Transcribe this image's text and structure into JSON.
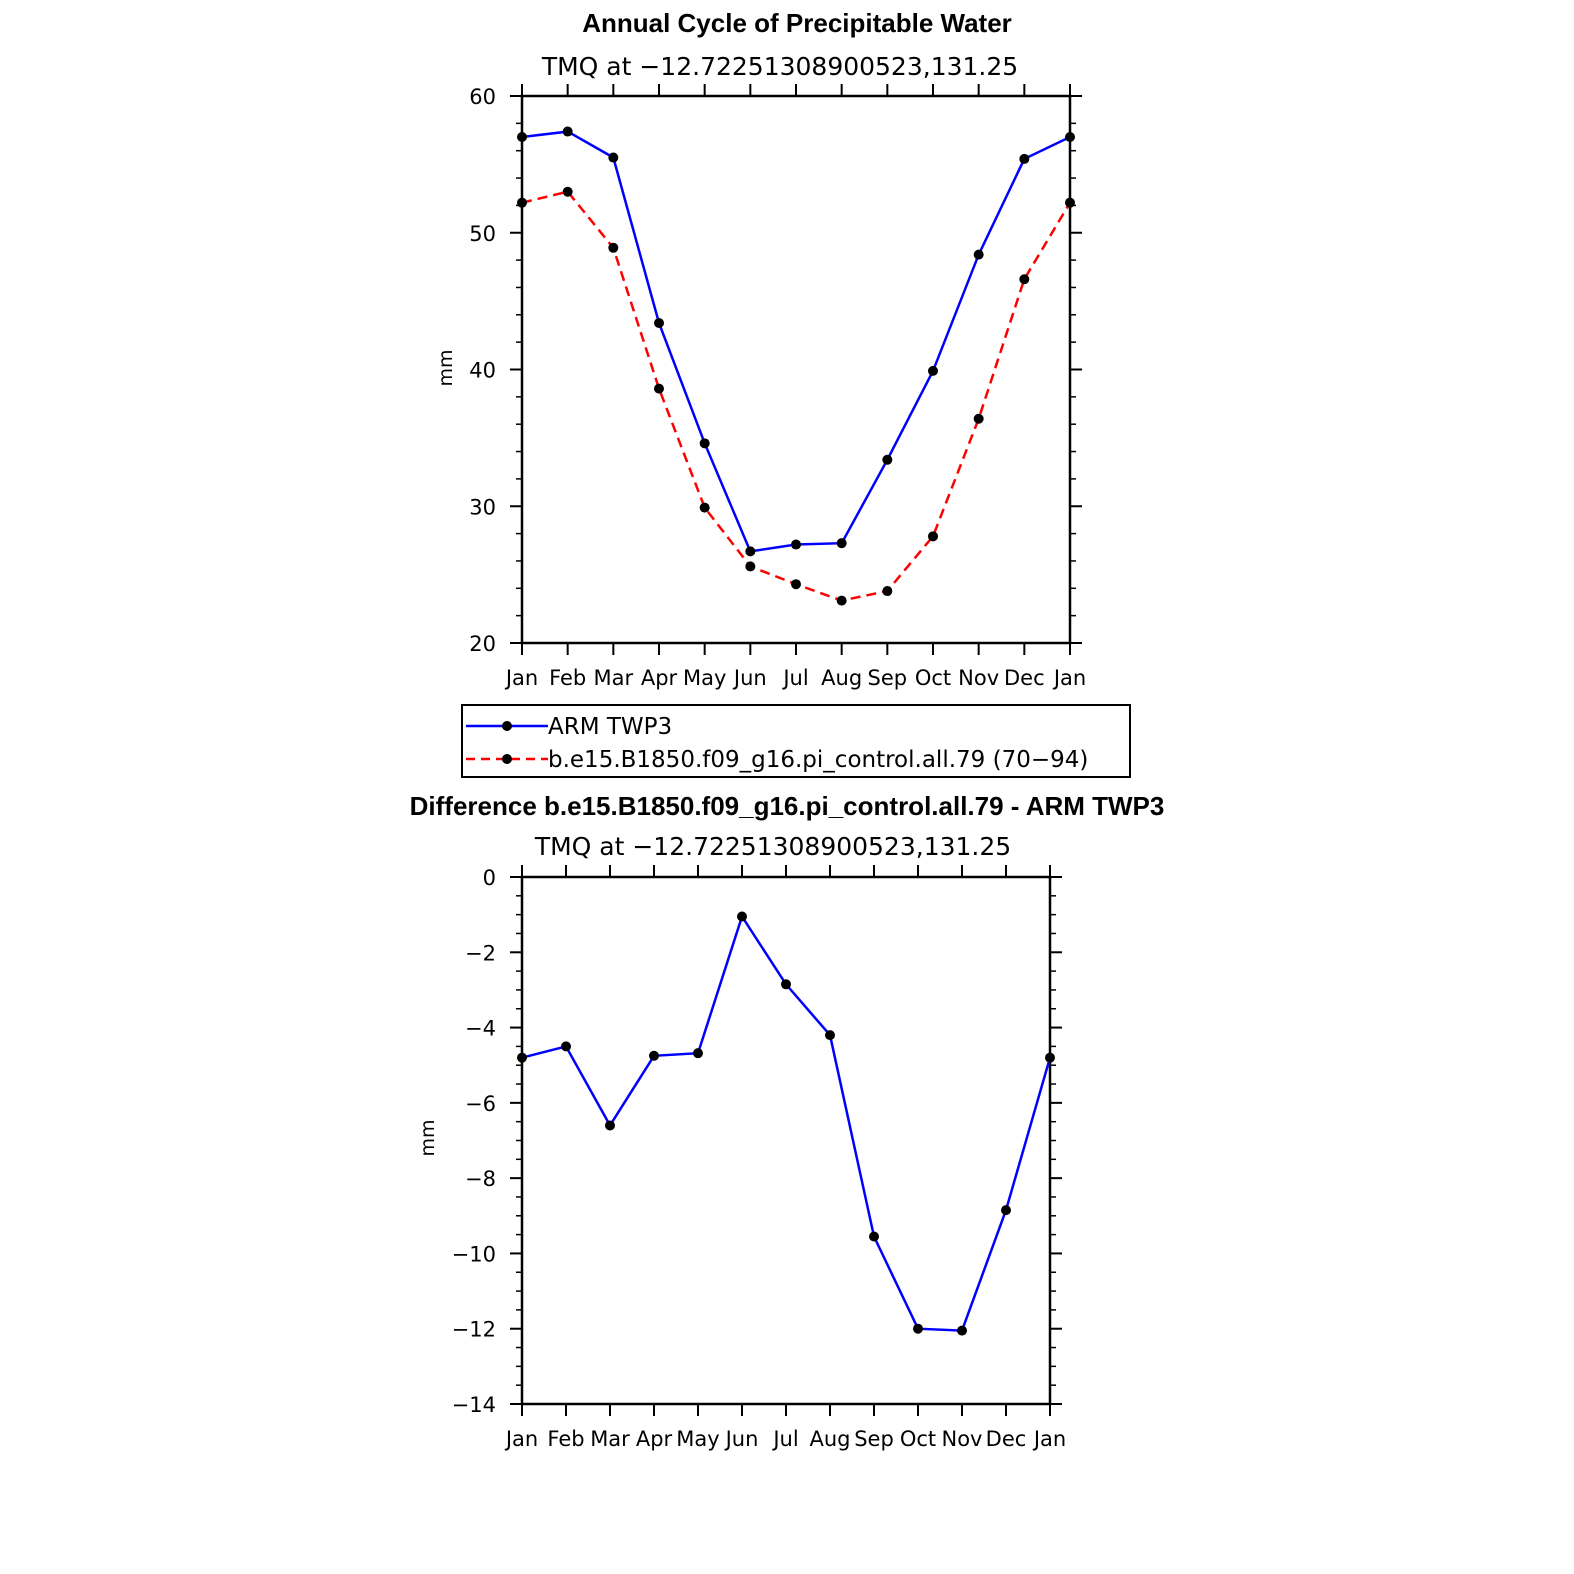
{
  "chart_data": [
    {
      "type": "line",
      "title": "Annual Cycle of Precipitable Water",
      "subtitle": "TMQ at −12.72251308900523,131.25",
      "ylabel": "mm",
      "xlabel": "",
      "ylim": [
        20,
        60
      ],
      "yticks": [
        "20",
        "30",
        "40",
        "50",
        "60"
      ],
      "categories": [
        "Jan",
        "Feb",
        "Mar",
        "Apr",
        "May",
        "Jun",
        "Jul",
        "Aug",
        "Sep",
        "Oct",
        "Nov",
        "Dec",
        "Jan"
      ],
      "series": [
        {
          "name": "ARM TWP3",
          "color": "#0000ff",
          "style": "solid",
          "values": [
            57.0,
            57.4,
            55.5,
            43.4,
            34.6,
            26.7,
            27.2,
            27.3,
            33.4,
            39.9,
            48.4,
            55.4,
            57.0
          ]
        },
        {
          "name": "b.e15.B1850.f09_g16.pi_control.all.79 (70−94)",
          "color": "#ff0000",
          "style": "dashed",
          "values": [
            52.2,
            53.0,
            48.9,
            38.6,
            29.9,
            25.6,
            24.3,
            23.1,
            23.8,
            27.8,
            36.4,
            46.6,
            52.2
          ]
        }
      ],
      "legend": {
        "position": "bottom",
        "entries": [
          "ARM TWP3",
          "b.e15.B1850.f09_g16.pi_control.all.79 (70−94)"
        ]
      }
    },
    {
      "type": "line",
      "title": "Difference b.e15.B1850.f09_g16.pi_control.all.79 - ARM TWP3",
      "subtitle": "TMQ at −12.72251308900523,131.25",
      "ylabel": "mm",
      "xlabel": "",
      "ylim": [
        -14,
        0
      ],
      "yticks": [
        "−14",
        "−12",
        "−10",
        "−8",
        "−6",
        "−4",
        "−2",
        "0"
      ],
      "categories": [
        "Jan",
        "Feb",
        "Mar",
        "Apr",
        "May",
        "Jun",
        "Jul",
        "Aug",
        "Sep",
        "Oct",
        "Nov",
        "Dec",
        "Jan"
      ],
      "series": [
        {
          "name": "difference",
          "color": "#0000ff",
          "style": "solid",
          "values": [
            -4.8,
            -4.5,
            -6.6,
            -4.75,
            -4.68,
            -1.05,
            -2.85,
            -4.2,
            -9.55,
            -12.0,
            -12.05,
            -8.85,
            -4.8
          ]
        }
      ]
    }
  ]
}
